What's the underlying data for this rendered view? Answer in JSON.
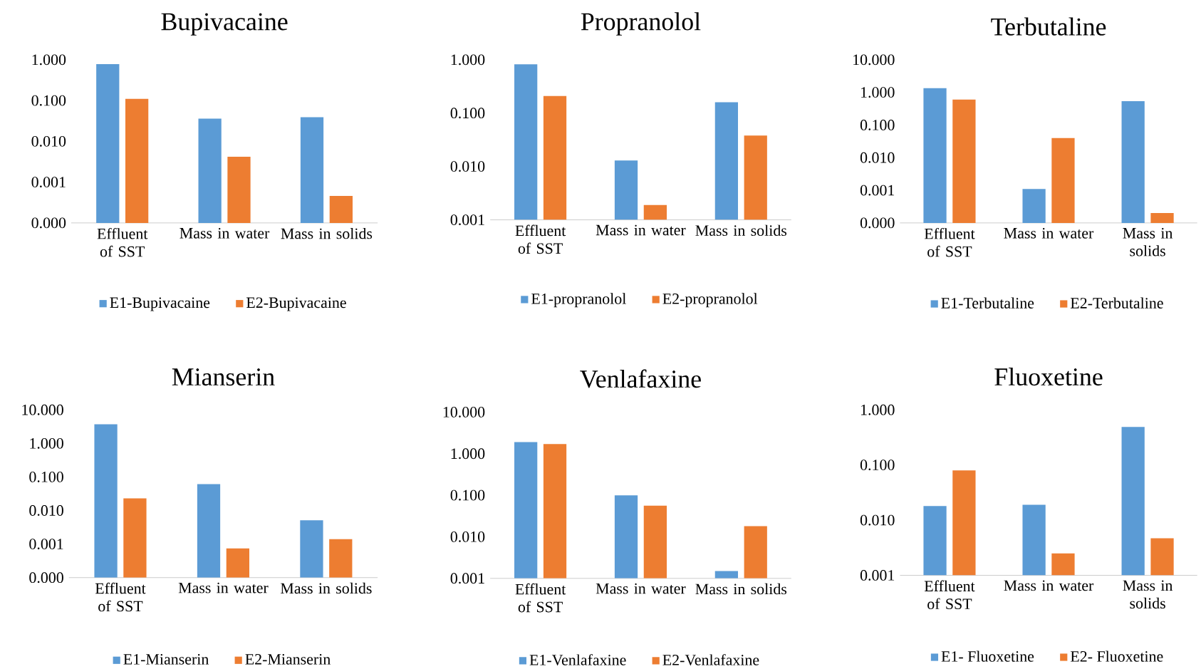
{
  "chart_data": [
    {
      "type": "bar",
      "title": "Bupivacaine",
      "categories": [
        "Effluent of SST",
        "Mass in water",
        "Mass in solids"
      ],
      "log": "y",
      "ylim": [
        0.0001,
        1
      ],
      "yticks": [
        {
          "value": 0.0001,
          "label": "0.000"
        },
        {
          "value": 0.001,
          "label": "0.001"
        },
        {
          "value": 0.01,
          "label": "0.010"
        },
        {
          "value": 0.1,
          "label": "0.100"
        },
        {
          "value": 1,
          "label": "1.000"
        }
      ],
      "legend": "bottom",
      "series": [
        {
          "name": "E1-Bupivacaine",
          "color": "#5b9bd5",
          "values": [
            0.78,
            0.036,
            0.039
          ]
        },
        {
          "name": "E2-Bupivacaine",
          "color": "#ed7d31",
          "values": [
            0.11,
            0.0042,
            0.00046
          ]
        }
      ]
    },
    {
      "type": "bar",
      "title": "Propranolol",
      "categories": [
        "Effluent of SST",
        "Mass in water",
        "Mass in solids"
      ],
      "log": "y",
      "ylim": [
        0.001,
        1
      ],
      "yticks": [
        {
          "value": 0.001,
          "label": "0.001"
        },
        {
          "value": 0.01,
          "label": "0.010"
        },
        {
          "value": 0.1,
          "label": "0.100"
        },
        {
          "value": 1,
          "label": "1.000"
        }
      ],
      "legend": "bottom",
      "series": [
        {
          "name": "E1-propranolol",
          "color": "#5b9bd5",
          "values": [
            0.82,
            0.013,
            0.16
          ]
        },
        {
          "name": "E2-propranolol",
          "color": "#ed7d31",
          "values": [
            0.21,
            0.0019,
            0.038
          ]
        }
      ]
    },
    {
      "type": "bar",
      "title": "Terbutaline",
      "categories": [
        "Effluent of SST",
        "Mass in water",
        "Mass in solids"
      ],
      "log": "y",
      "ylim": [
        0.0001,
        10
      ],
      "yticks": [
        {
          "value": 0.0001,
          "label": "0.000"
        },
        {
          "value": 0.001,
          "label": "0.001"
        },
        {
          "value": 0.01,
          "label": "0.010"
        },
        {
          "value": 0.1,
          "label": "0.100"
        },
        {
          "value": 1,
          "label": "1.000"
        },
        {
          "value": 10,
          "label": "10.000"
        }
      ],
      "legend": "bottom",
      "series": [
        {
          "name": "E1-Terbutaline",
          "color": "#5b9bd5",
          "values": [
            1.35,
            0.0011,
            0.54
          ]
        },
        {
          "name": "E2-Terbutaline",
          "color": "#ed7d31",
          "values": [
            0.6,
            0.04,
            0.0002
          ]
        }
      ]
    },
    {
      "type": "bar",
      "title": "Mianserin",
      "categories": [
        "Effluent of SST",
        "Mass in water",
        "Mass in solids"
      ],
      "log": "y",
      "ylim": [
        0.0001,
        10
      ],
      "yticks": [
        {
          "value": 0.0001,
          "label": "0.000"
        },
        {
          "value": 0.001,
          "label": "0.001"
        },
        {
          "value": 0.01,
          "label": "0.010"
        },
        {
          "value": 0.1,
          "label": "0.100"
        },
        {
          "value": 1,
          "label": "1.000"
        },
        {
          "value": 10,
          "label": "10.000"
        }
      ],
      "legend": "bottom",
      "series": [
        {
          "name": "E1-Mianserin",
          "color": "#5b9bd5",
          "values": [
            3.7,
            0.061,
            0.0051
          ]
        },
        {
          "name": "E2-Mianserin",
          "color": "#ed7d31",
          "values": [
            0.023,
            0.00074,
            0.0014
          ]
        }
      ]
    },
    {
      "type": "bar",
      "title": "Venlafaxine",
      "categories": [
        "Effluent of SST",
        "Mass in water",
        "Mass in solids"
      ],
      "log": "y",
      "ylim": [
        0.001,
        10
      ],
      "yticks": [
        {
          "value": 0.001,
          "label": "0.001"
        },
        {
          "value": 0.01,
          "label": "0.010"
        },
        {
          "value": 0.1,
          "label": "0.100"
        },
        {
          "value": 1,
          "label": "1.000"
        },
        {
          "value": 10,
          "label": "10.000"
        }
      ],
      "legend": "bottom",
      "series": [
        {
          "name": "E1-Venlafaxine",
          "color": "#5b9bd5",
          "values": [
            1.9,
            0.1,
            0.0015
          ]
        },
        {
          "name": "E2-Venlafaxine",
          "color": "#ed7d31",
          "values": [
            1.7,
            0.056,
            0.018
          ]
        }
      ]
    },
    {
      "type": "bar",
      "title": "Fluoxetine",
      "categories": [
        "Effluent of SST",
        "Mass in water",
        "Mass in solids"
      ],
      "log": "y",
      "ylim": [
        0.001,
        1
      ],
      "yticks": [
        {
          "value": 0.001,
          "label": "0.001"
        },
        {
          "value": 0.01,
          "label": "0.010"
        },
        {
          "value": 0.1,
          "label": "0.100"
        },
        {
          "value": 1,
          "label": "1.000"
        }
      ],
      "legend": "bottom",
      "series": [
        {
          "name": "E1- Fluoxetine",
          "color": "#5b9bd5",
          "values": [
            0.018,
            0.019,
            0.49
          ]
        },
        {
          "name": "E2- Fluoxetine",
          "color": "#ed7d31",
          "values": [
            0.08,
            0.0025,
            0.0047
          ]
        }
      ]
    }
  ]
}
